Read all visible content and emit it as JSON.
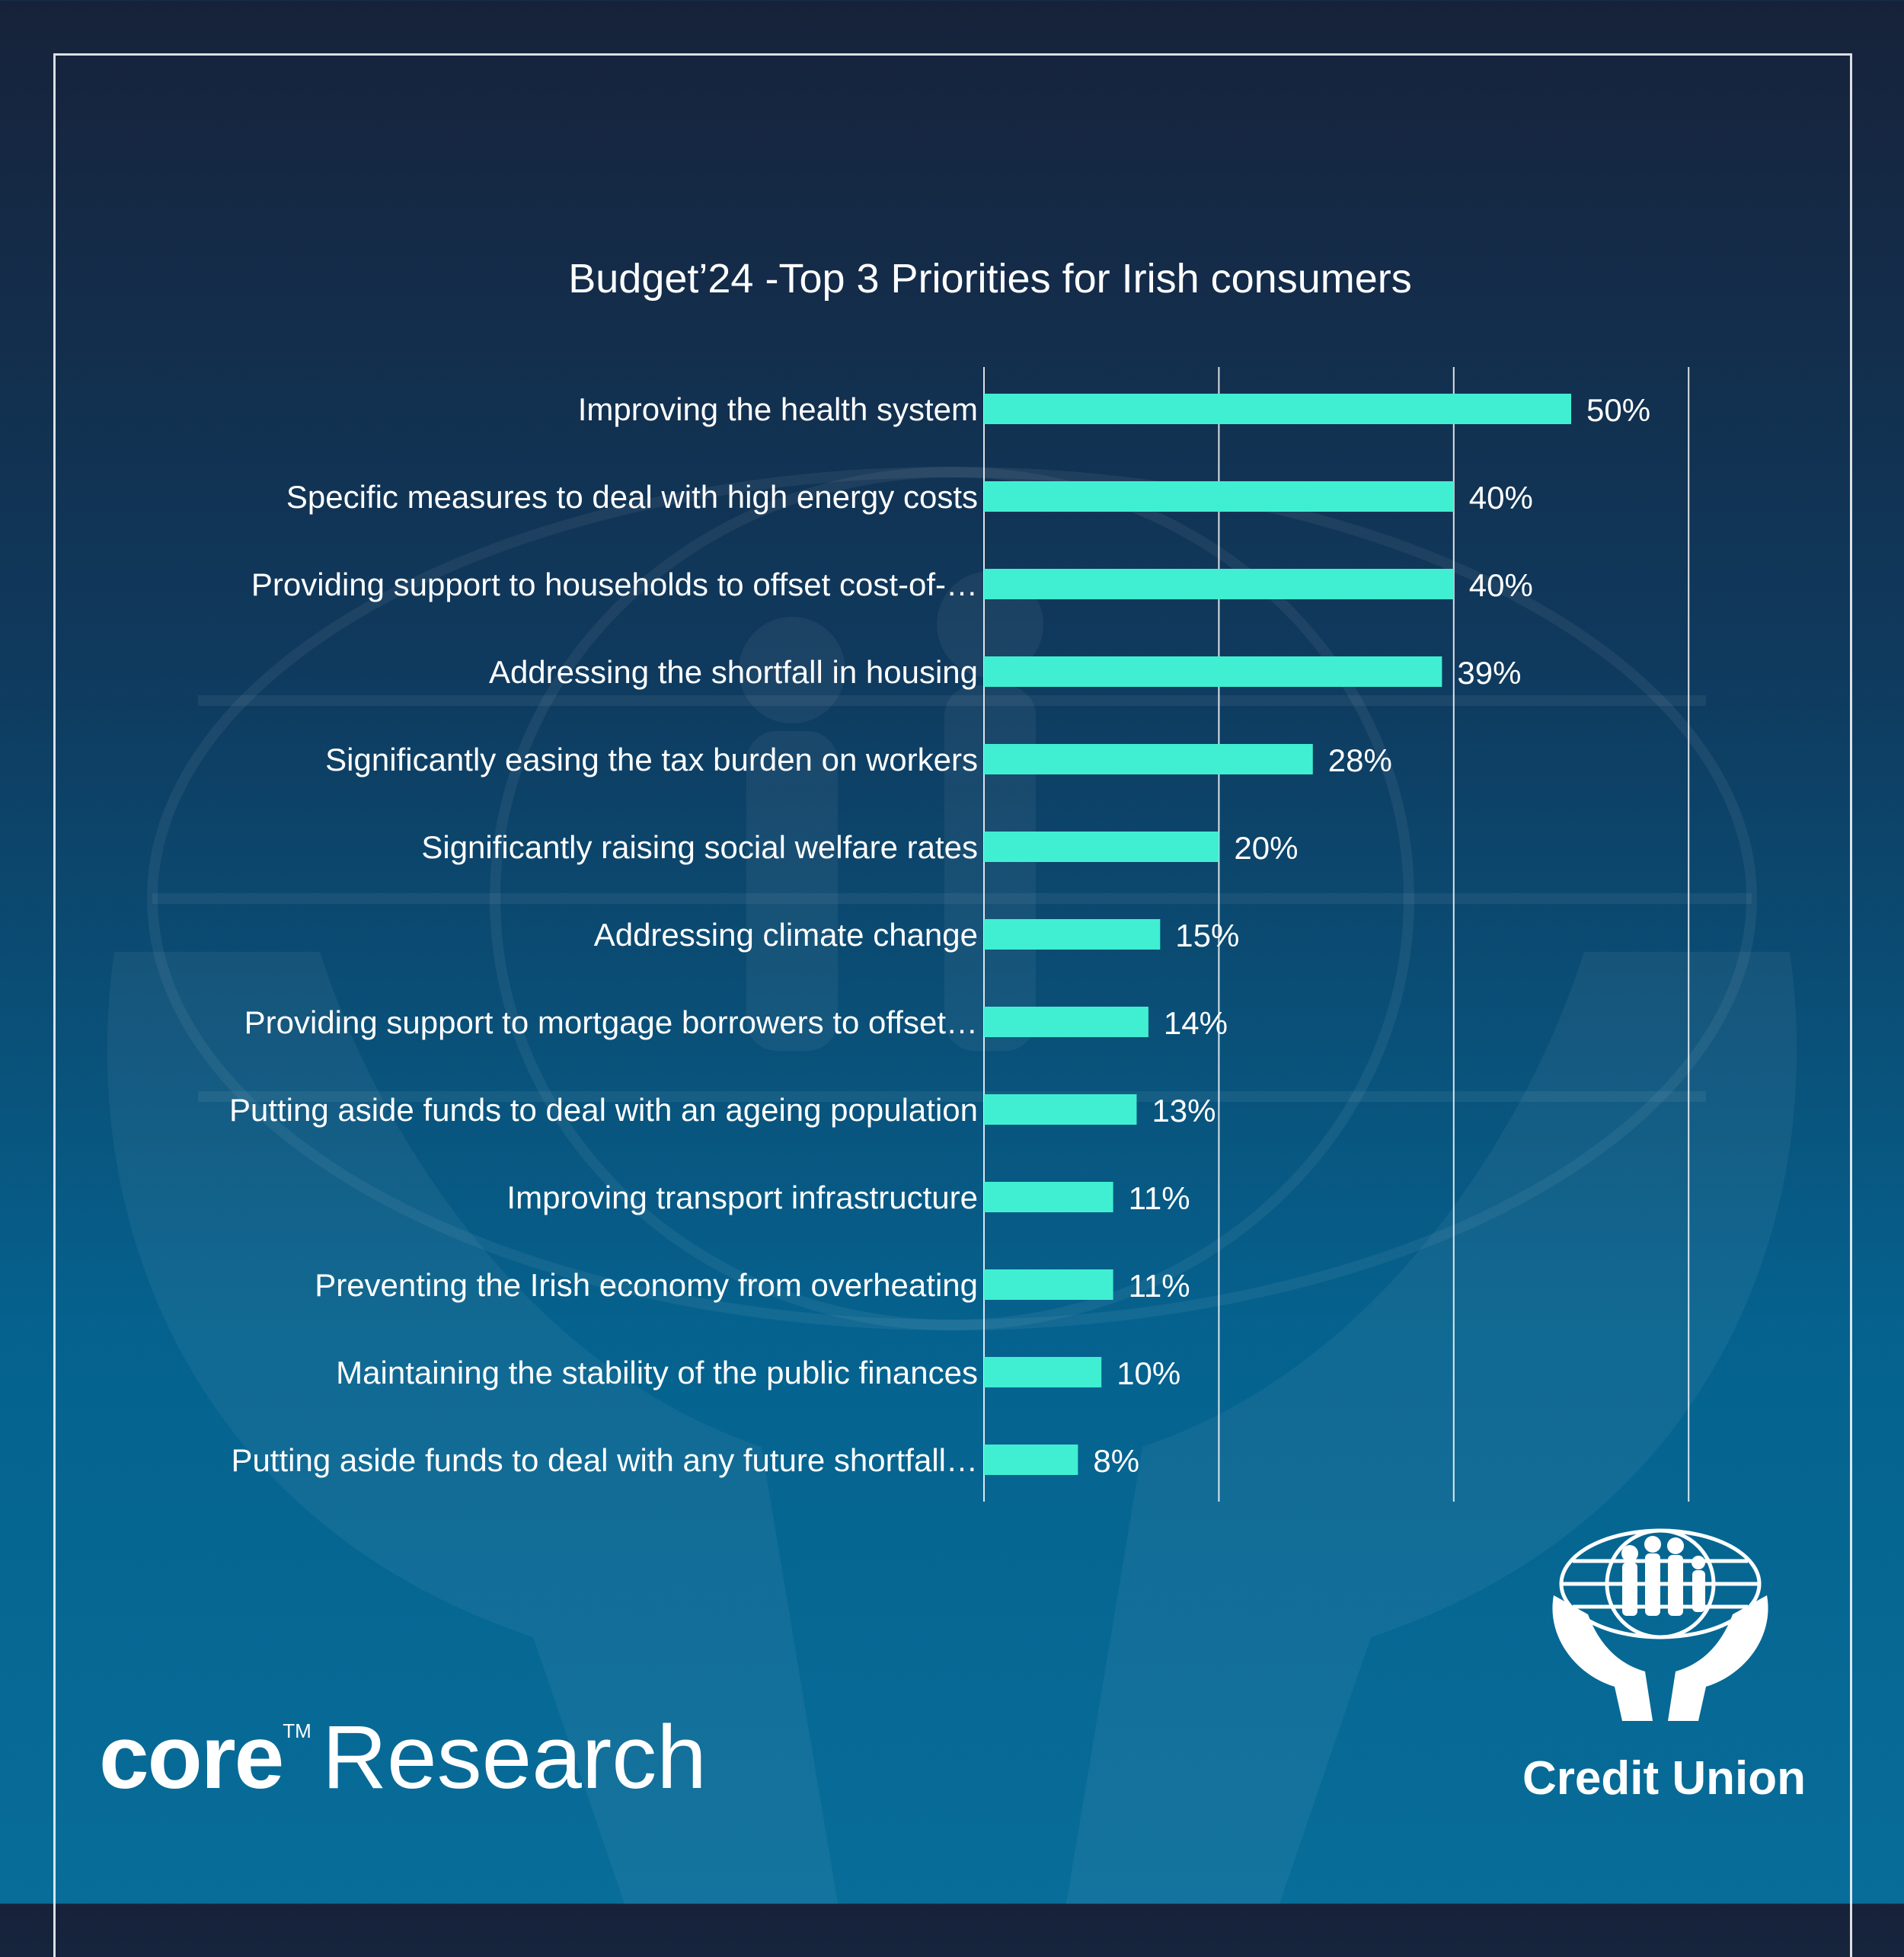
{
  "chart_data": {
    "type": "bar",
    "orientation": "horizontal",
    "title": "Budget’24 -Top 3 Priorities for Irish consumers",
    "categories": [
      "Improving the health system",
      "Specific measures to deal with high energy costs",
      "Providing support to households to offset cost-of-…",
      "Addressing the shortfall in housing",
      "Significantly easing the tax burden on workers",
      "Significantly raising social welfare rates",
      "Addressing climate change",
      "Providing support to mortgage borrowers to offset…",
      "Putting aside funds to deal with an ageing population",
      "Improving transport infrastructure",
      "Preventing the Irish economy from overheating",
      "Maintaining the stability of the public finances",
      "Putting aside funds to deal with any future shortfall…"
    ],
    "values": [
      50,
      40,
      40,
      39,
      28,
      20,
      15,
      14,
      13,
      11,
      11,
      10,
      8
    ],
    "value_labels": [
      "50%",
      "40%",
      "40%",
      "39%",
      "28%",
      "20%",
      "15%",
      "14%",
      "13%",
      "11%",
      "11%",
      "10%",
      "8%"
    ],
    "xlim": [
      0,
      60
    ],
    "grid": true,
    "bar_color": "#40efd1"
  },
  "branding": {
    "core_word": "core",
    "trademark": "TM",
    "research_word": "Research",
    "credit_union": "Credit Union"
  }
}
